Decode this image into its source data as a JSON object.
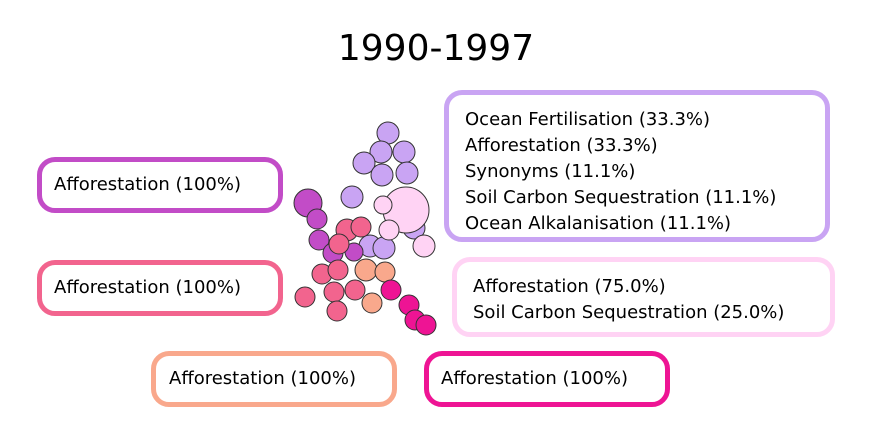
{
  "title": "1990-1997",
  "clusters": [
    {
      "id": "c1",
      "color": "#c9a4f3",
      "lines": [
        "Ocean Fertilisation (33.3%)",
        "Afforestation (33.3%)",
        "Synonyms (11.1%)",
        "Soil Carbon Sequestration (11.1%)",
        "Ocean Alkalanisation (11.1%)"
      ]
    },
    {
      "id": "c2",
      "color": "#c24cc7",
      "lines": [
        "Afforestation (100%)"
      ]
    },
    {
      "id": "c3",
      "color": "#ffd3f4",
      "lines": [
        "Afforestation (75.0%)",
        "Soil Carbon Sequestration (25.0%)"
      ]
    },
    {
      "id": "c4",
      "color": "#f2648e",
      "lines": [
        "Afforestation (100%)"
      ]
    },
    {
      "id": "c5",
      "color": "#f9a88c",
      "lines": [
        "Afforestation (100%)"
      ]
    },
    {
      "id": "c6",
      "color": "#ee1494",
      "lines": [
        "Afforestation (100%)"
      ]
    }
  ]
}
